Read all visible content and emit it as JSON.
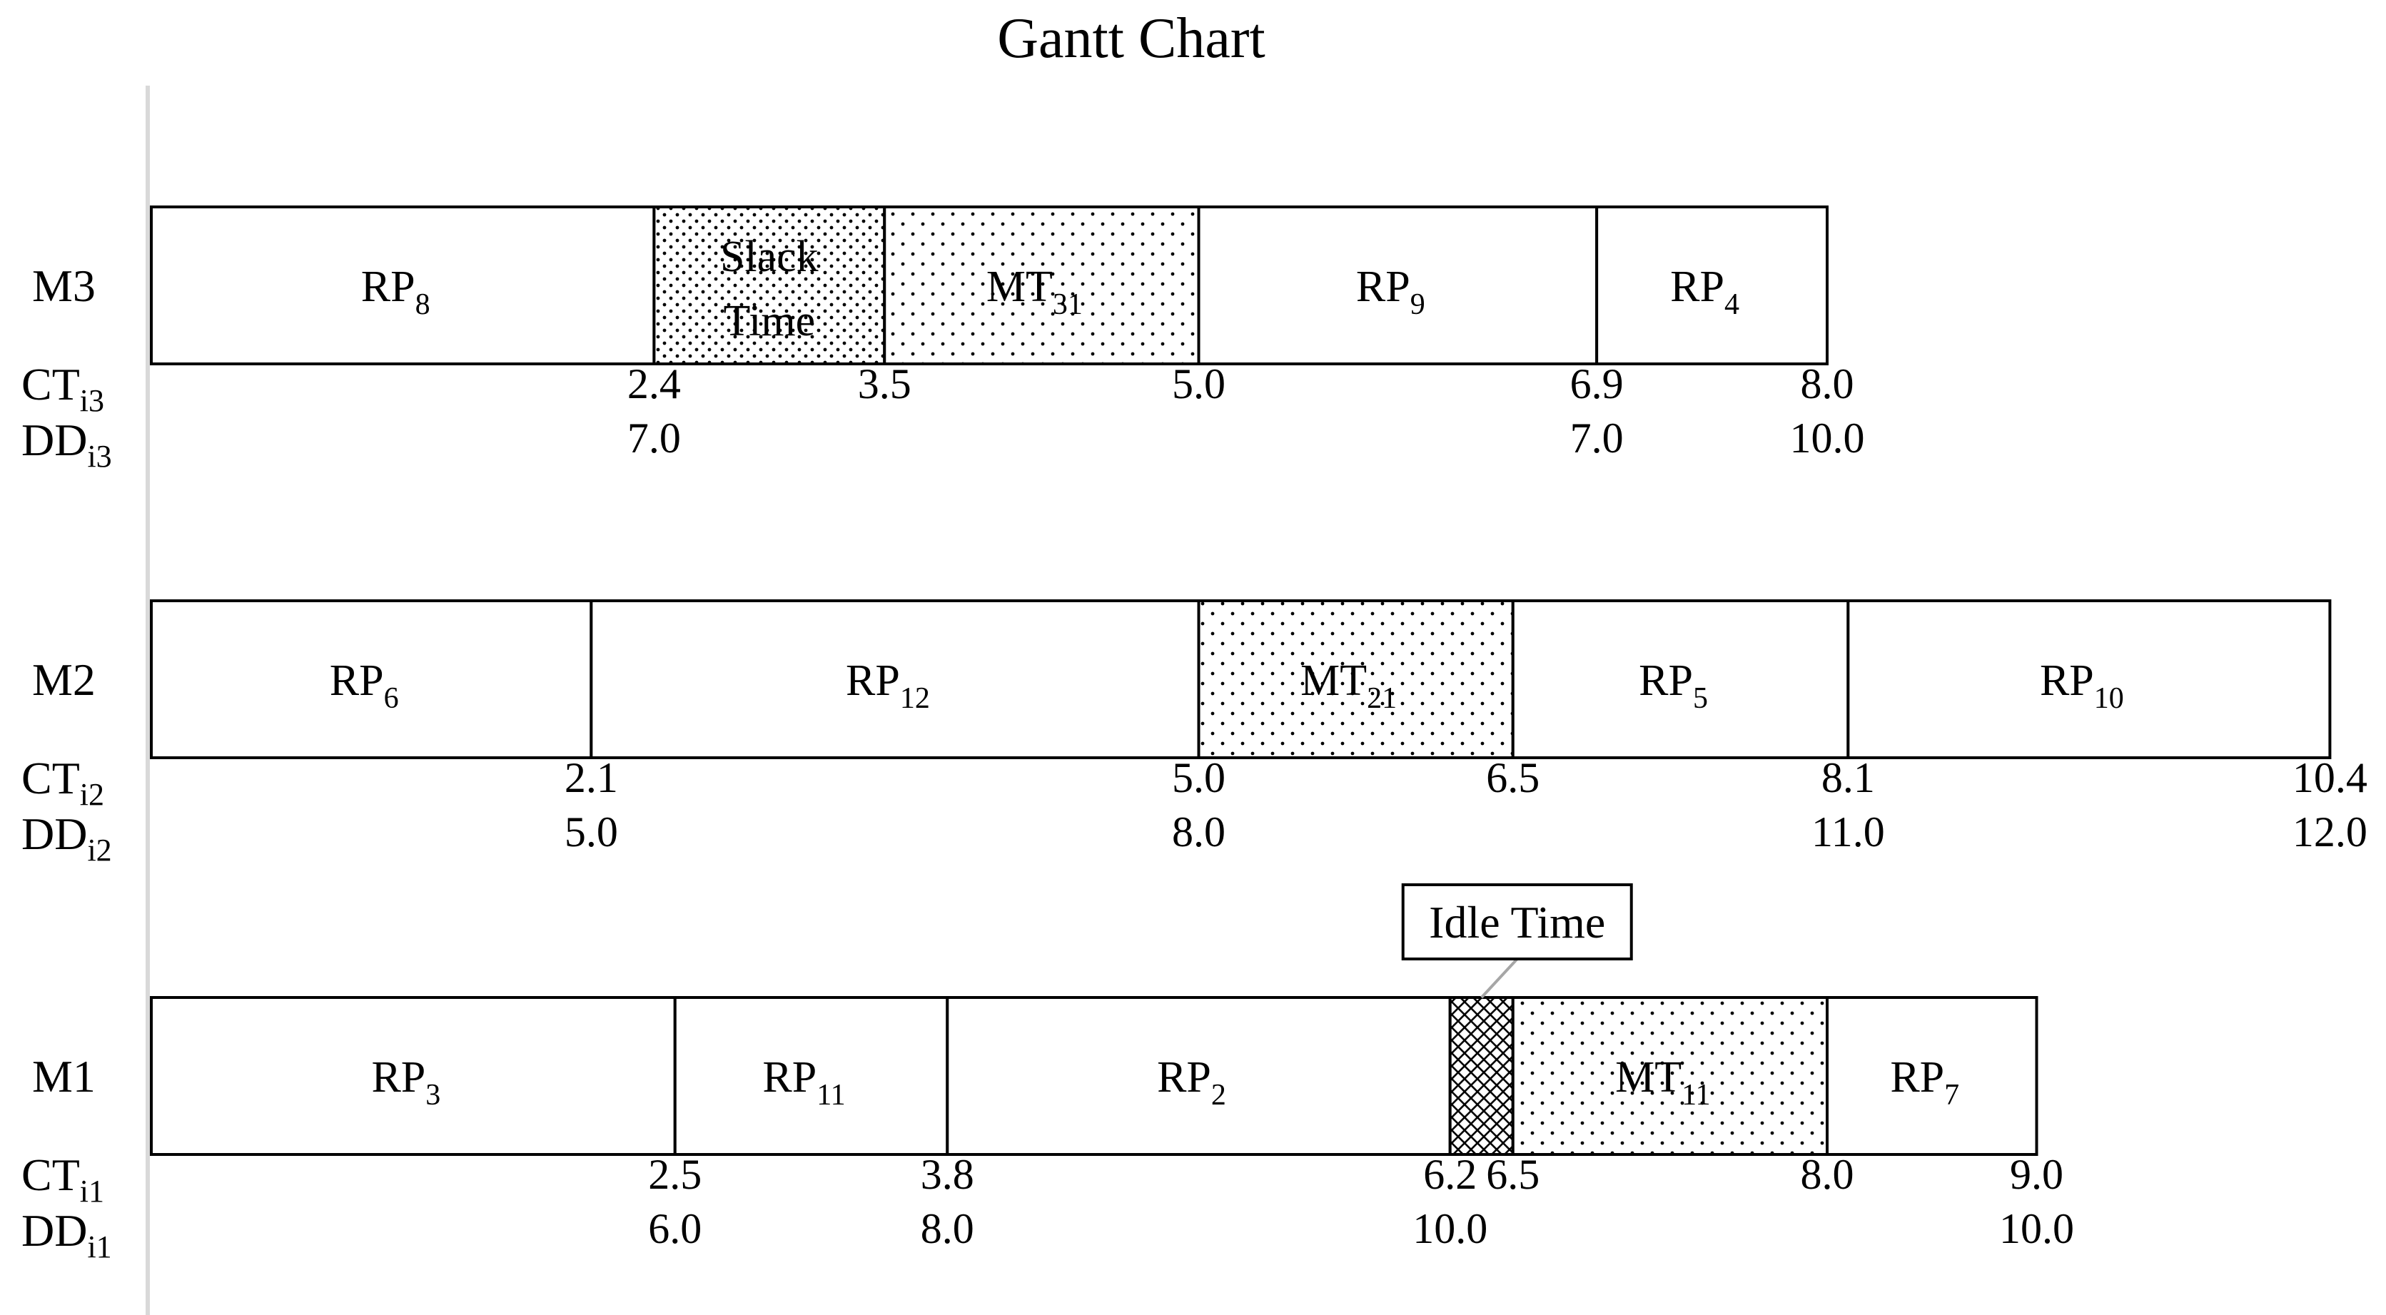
{
  "chart_data": {
    "type": "gantt",
    "title": "Gantt Chart",
    "machines": [
      {
        "name": "M3",
        "ct_label": {
          "base": "CT",
          "sub": "i3"
        },
        "dd_label": {
          "base": "DD",
          "sub": "i3"
        },
        "segments": [
          {
            "base": "RP",
            "sub": "8",
            "start": 0.0,
            "end": 2.4,
            "kind": "job"
          },
          {
            "label_lines": [
              "Slack",
              "Time"
            ],
            "start": 2.4,
            "end": 3.5,
            "kind": "slack"
          },
          {
            "base": "MT",
            "sub": "31",
            "start": 3.5,
            "end": 5.0,
            "kind": "maintenance"
          },
          {
            "base": "RP",
            "sub": "9",
            "start": 5.0,
            "end": 6.9,
            "kind": "job"
          },
          {
            "base": "RP",
            "sub": "4",
            "start": 6.9,
            "end": 8.0,
            "kind": "job"
          }
        ],
        "ct_values": [
          {
            "at": 2.4,
            "text": "2.4"
          },
          {
            "at": 3.5,
            "text": "3.5"
          },
          {
            "at": 5.0,
            "text": "5.0"
          },
          {
            "at": 6.9,
            "text": "6.9"
          },
          {
            "at": 8.0,
            "text": "8.0"
          }
        ],
        "dd_values": [
          {
            "at": 2.4,
            "text": "7.0"
          },
          {
            "at": 6.9,
            "text": "7.0"
          },
          {
            "at": 8.0,
            "text": "10.0"
          }
        ]
      },
      {
        "name": "M2",
        "ct_label": {
          "base": "CT",
          "sub": "i2"
        },
        "dd_label": {
          "base": "DD",
          "sub": "i2"
        },
        "segments": [
          {
            "base": "RP",
            "sub": "6",
            "start": 0.0,
            "end": 2.1,
            "kind": "job"
          },
          {
            "base": "RP",
            "sub": "12",
            "start": 2.1,
            "end": 5.0,
            "kind": "job"
          },
          {
            "base": "MT",
            "sub": "21",
            "start": 5.0,
            "end": 6.5,
            "kind": "maintenance"
          },
          {
            "base": "RP",
            "sub": "5",
            "start": 6.5,
            "end": 8.1,
            "kind": "job"
          },
          {
            "base": "RP",
            "sub": "10",
            "start": 8.1,
            "end": 10.4,
            "kind": "job"
          }
        ],
        "ct_values": [
          {
            "at": 2.1,
            "text": "2.1"
          },
          {
            "at": 5.0,
            "text": "5.0"
          },
          {
            "at": 6.5,
            "text": "6.5"
          },
          {
            "at": 8.1,
            "text": "8.1"
          },
          {
            "at": 10.4,
            "text": "10.4"
          }
        ],
        "dd_values": [
          {
            "at": 2.1,
            "text": "5.0"
          },
          {
            "at": 5.0,
            "text": "8.0"
          },
          {
            "at": 8.1,
            "text": "11.0"
          },
          {
            "at": 10.4,
            "text": "12.0"
          }
        ]
      },
      {
        "name": "M1",
        "ct_label": {
          "base": "CT",
          "sub": "i1"
        },
        "dd_label": {
          "base": "DD",
          "sub": "i1"
        },
        "segments": [
          {
            "base": "RP",
            "sub": "3",
            "start": 0.0,
            "end": 2.5,
            "kind": "job"
          },
          {
            "base": "RP",
            "sub": "11",
            "start": 2.5,
            "end": 3.8,
            "kind": "job"
          },
          {
            "base": "RP",
            "sub": "2",
            "start": 3.8,
            "end": 6.2,
            "kind": "job"
          },
          {
            "start": 6.2,
            "end": 6.5,
            "kind": "idle"
          },
          {
            "base": "MT",
            "sub": "11",
            "start": 6.5,
            "end": 8.0,
            "kind": "maintenance"
          },
          {
            "base": "RP",
            "sub": "7",
            "start": 8.0,
            "end": 9.0,
            "kind": "job"
          }
        ],
        "ct_values": [
          {
            "at": 2.5,
            "text": "2.5"
          },
          {
            "at": 3.8,
            "text": "3.8"
          },
          {
            "at": 6.2,
            "text": "6.2"
          },
          {
            "at": 6.5,
            "text": "6.5"
          },
          {
            "at": 8.0,
            "text": "8.0"
          },
          {
            "at": 9.0,
            "text": "9.0"
          }
        ],
        "dd_values": [
          {
            "at": 2.5,
            "text": "6.0"
          },
          {
            "at": 3.8,
            "text": "8.0"
          },
          {
            "at": 6.2,
            "text": "10.0"
          },
          {
            "at": 9.0,
            "text": "10.0"
          }
        ],
        "callout": {
          "text": "Idle Time",
          "target_start": 6.2,
          "target_end": 6.5
        }
      }
    ],
    "colors": {
      "background": "#ffffff",
      "line": "#000000",
      "axis": "#d9d9d9"
    }
  }
}
